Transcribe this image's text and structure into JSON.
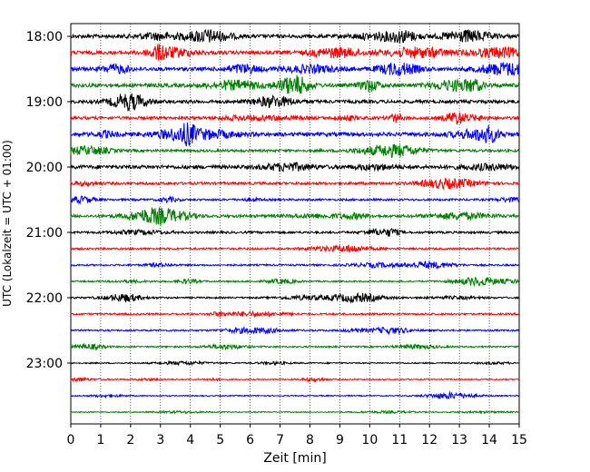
{
  "chart_data": {
    "type": "helicorder",
    "xlabel": "Zeit  [min]",
    "ylabel": "UTC (Lokalzeit = UTC + 01:00)",
    "xlim": [
      0,
      15
    ],
    "x_ticks": [
      "0",
      "1",
      "2",
      "3",
      "4",
      "5",
      "6",
      "7",
      "8",
      "9",
      "10",
      "11",
      "12",
      "13",
      "14",
      "15"
    ],
    "vertical_grid": "dotted, every 1 min",
    "y_tick_labels": [
      "18:00",
      "19:00",
      "20:00",
      "21:00",
      "22:00",
      "23:00"
    ],
    "row_start_times": [
      "18:00",
      "18:15",
      "18:30",
      "18:45",
      "19:00",
      "19:15",
      "19:30",
      "19:45",
      "20:00",
      "20:15",
      "20:30",
      "20:45",
      "21:00",
      "21:15",
      "21:30",
      "21:45",
      "22:00",
      "22:15",
      "22:30",
      "22:45",
      "23:00",
      "23:15",
      "23:30",
      "23:45"
    ],
    "row_colors": [
      "#000000",
      "#ff0000",
      "#0000ff",
      "#008000"
    ],
    "row_count": 24,
    "row_minutes": 15,
    "relative_amplitude": [
      1.0,
      1.0,
      1.0,
      1.05,
      0.9,
      0.8,
      1.05,
      0.7,
      1.0,
      0.7,
      0.55,
      0.75,
      0.6,
      0.5,
      0.45,
      0.4,
      0.45,
      0.5,
      0.45,
      0.4,
      0.35,
      0.3,
      0.3,
      0.25
    ]
  }
}
